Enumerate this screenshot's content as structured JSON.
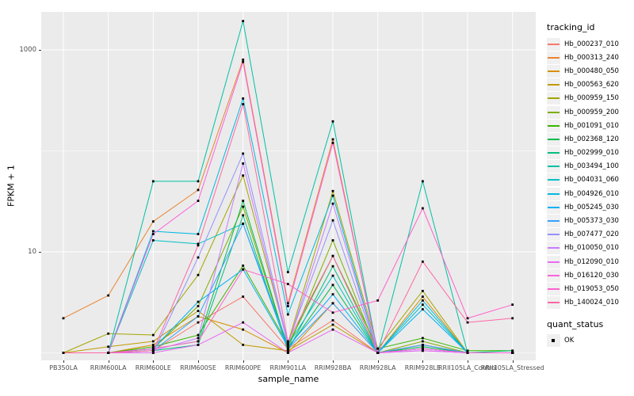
{
  "chart_data": {
    "type": "line",
    "title": "",
    "xlabel": "sample_name",
    "ylabel": "FPKM + 1",
    "y_scale": "log10",
    "y_axis_tick_values": [
      10,
      1000
    ],
    "y_axis_tick_labels": [
      "10",
      "1000"
    ],
    "ylim": [
      1,
      2400
    ],
    "grid": true,
    "legend_position": "right",
    "legend_title": "tracking_id",
    "legend2_title": "quant_status",
    "legend2_items": [
      "OK"
    ],
    "point_color": "#000000",
    "panel_bg": "#EBEBEB",
    "grid_color": "#FFFFFF",
    "categories": [
      "PB350LA",
      "RRIM600LA",
      "RRIM600LE",
      "RRIM600SE",
      "RRIM600PE",
      "RRIM901LA",
      "RRIM928BA",
      "RRIM928LA",
      "RRIM928LE",
      "RRII105LA_Control",
      "RRII105LA_Stressed"
    ],
    "series": [
      {
        "name": "Hb_000237_010",
        "color": "#F8766D",
        "values": [
          1,
          1,
          1.05,
          2.0,
          3.6,
          1.1,
          2.1,
          1,
          1.2,
          1,
          1
        ]
      },
      {
        "name": "Hb_000313_240",
        "color": "#EA8331",
        "values": [
          2.2,
          3.7,
          20,
          41,
          800,
          3.1,
          130,
          1,
          1.2,
          1,
          1
        ]
      },
      {
        "name": "Hb_000480_050",
        "color": "#D89000",
        "values": [
          1,
          1,
          1.2,
          2.3,
          1.7,
          1,
          3.1,
          1,
          3.6,
          1,
          1
        ]
      },
      {
        "name": "Hb_000563_620",
        "color": "#C09B00",
        "values": [
          1,
          1.15,
          1.3,
          2.6,
          1.2,
          1.05,
          1.9,
          1,
          1.1,
          1,
          1
        ]
      },
      {
        "name": "Hb_000959_150",
        "color": "#A3A500",
        "values": [
          1,
          1.55,
          1.5,
          5.9,
          57,
          1.25,
          40,
          1.1,
          4.1,
          1,
          1
        ]
      },
      {
        "name": "Hb_000959_200",
        "color": "#7CAE00",
        "values": [
          1,
          1,
          1.1,
          2.9,
          28,
          1.1,
          13,
          1,
          1.3,
          1,
          1
        ]
      },
      {
        "name": "Hb_001091_010",
        "color": "#39B600",
        "values": [
          1,
          1,
          1.15,
          1.5,
          7.3,
          1.2,
          9.1,
          1.1,
          1.4,
          1.05,
          1.05
        ]
      },
      {
        "name": "Hb_002368_120",
        "color": "#00BB4E",
        "values": [
          1,
          1,
          1.1,
          1.3,
          32,
          1.1,
          4.7,
          1,
          1.15,
          1,
          1
        ]
      },
      {
        "name": "Hb_002999_010",
        "color": "#00BF7D",
        "values": [
          1,
          1,
          1.05,
          1.2,
          23,
          1.05,
          7.2,
          1,
          1.1,
          1,
          1.05
        ]
      },
      {
        "name": "Hb_003494_100",
        "color": "#00C1A3",
        "values": [
          1,
          1,
          50,
          50,
          1930,
          6.3,
          196,
          1,
          50,
          1,
          1
        ]
      },
      {
        "name": "Hb_004031_060",
        "color": "#00BFC4",
        "values": [
          1,
          1,
          13,
          12,
          19,
          1.2,
          5.8,
          1,
          3.0,
          1,
          1
        ]
      },
      {
        "name": "Hb_004926_010",
        "color": "#00BAE0",
        "values": [
          1,
          1,
          16,
          15,
          330,
          2.4,
          36,
          1,
          3.3,
          1,
          1
        ]
      },
      {
        "name": "Hb_005245_030",
        "color": "#00B0F6",
        "values": [
          1,
          1,
          1.1,
          3.2,
          6.7,
          1.15,
          3.8,
          1,
          2.7,
          1,
          1
        ]
      },
      {
        "name": "Hb_005373_030",
        "color": "#35A2FF",
        "values": [
          1,
          1,
          1.05,
          2.3,
          19,
          1.1,
          3.1,
          1,
          1.2,
          1,
          1
        ]
      },
      {
        "name": "Hb_007477_020",
        "color": "#9590FF",
        "values": [
          1,
          1,
          1,
          8.8,
          94,
          1.25,
          20.5,
          1,
          1.1,
          1,
          1
        ]
      },
      {
        "name": "Hb_010050_010",
        "color": "#C77CFF",
        "values": [
          1,
          1,
          1.05,
          1.4,
          75,
          1.2,
          30,
          1,
          1.05,
          1,
          1
        ]
      },
      {
        "name": "Hb_012090_010",
        "color": "#E76BF3",
        "values": [
          1,
          1,
          1,
          1.2,
          2.0,
          1,
          1.7,
          1,
          1.05,
          1,
          1
        ]
      },
      {
        "name": "Hb_016120_030",
        "color": "#FA62DB",
        "values": [
          1,
          1,
          15,
          32,
          760,
          2.9,
          120,
          1,
          1.1,
          1,
          1
        ]
      },
      {
        "name": "Hb_019053_050",
        "color": "#FF61CC",
        "values": [
          1,
          1,
          1.1,
          1.3,
          6.7,
          4.8,
          2.5,
          3.3,
          27,
          2.2,
          3.0
        ]
      },
      {
        "name": "Hb_140024_010",
        "color": "#FF67A4",
        "values": [
          1,
          1,
          1.05,
          11.6,
          290,
          1.3,
          9.1,
          1,
          8,
          2.0,
          2.2
        ]
      }
    ]
  }
}
